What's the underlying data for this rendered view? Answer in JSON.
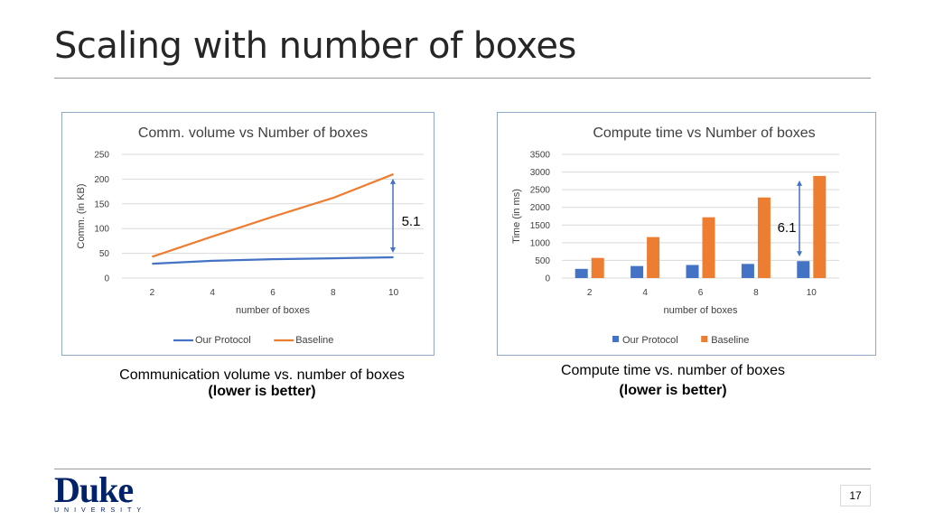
{
  "slide": {
    "title": "Scaling with number of boxes",
    "page_number": "17",
    "logo_name": "Duke",
    "logo_sub": "UNIVERSITY"
  },
  "captions": {
    "left_line1": "Communication volume vs. number of boxes",
    "left_line2": "(lower is better)",
    "right_line1": "Compute time vs. number of boxes",
    "right_line2": "(lower is better)"
  },
  "colors": {
    "our_protocol": "#4472c4",
    "baseline": "#ed7d31",
    "arrow": "#4472c4",
    "grid": "#d9d9d9"
  },
  "chart_data": [
    {
      "type": "line",
      "title": "Comm. volume vs Number of boxes",
      "xlabel": "number of boxes",
      "ylabel": "Comm. (in KB)",
      "x": [
        2,
        4,
        6,
        8,
        10
      ],
      "ylim": [
        0,
        250
      ],
      "yticks": [
        0,
        50,
        100,
        150,
        200,
        250
      ],
      "grid": true,
      "legend": "bottom",
      "series": [
        {
          "name": "Our Protocol",
          "values": [
            29,
            35,
            38,
            40,
            42
          ]
        },
        {
          "name": "Baseline",
          "values": [
            43,
            84,
            124,
            162,
            210
          ]
        }
      ],
      "annotation": {
        "text": "5.1",
        "x": 10
      }
    },
    {
      "type": "bar",
      "title": "Compute time vs Number of boxes",
      "xlabel": "number of boxes",
      "ylabel": "Time (in ms)",
      "categories": [
        2,
        4,
        6,
        8,
        10
      ],
      "ylim": [
        0,
        3500
      ],
      "yticks": [
        0,
        500,
        1000,
        1500,
        2000,
        2500,
        3000,
        3500
      ],
      "grid": true,
      "legend": "bottom",
      "series": [
        {
          "name": "Our Protocol",
          "values": [
            260,
            340,
            370,
            400,
            480
          ]
        },
        {
          "name": "Baseline",
          "values": [
            570,
            1160,
            1720,
            2280,
            2890
          ]
        }
      ],
      "annotation": {
        "text": "6.1",
        "x": 10
      }
    }
  ]
}
